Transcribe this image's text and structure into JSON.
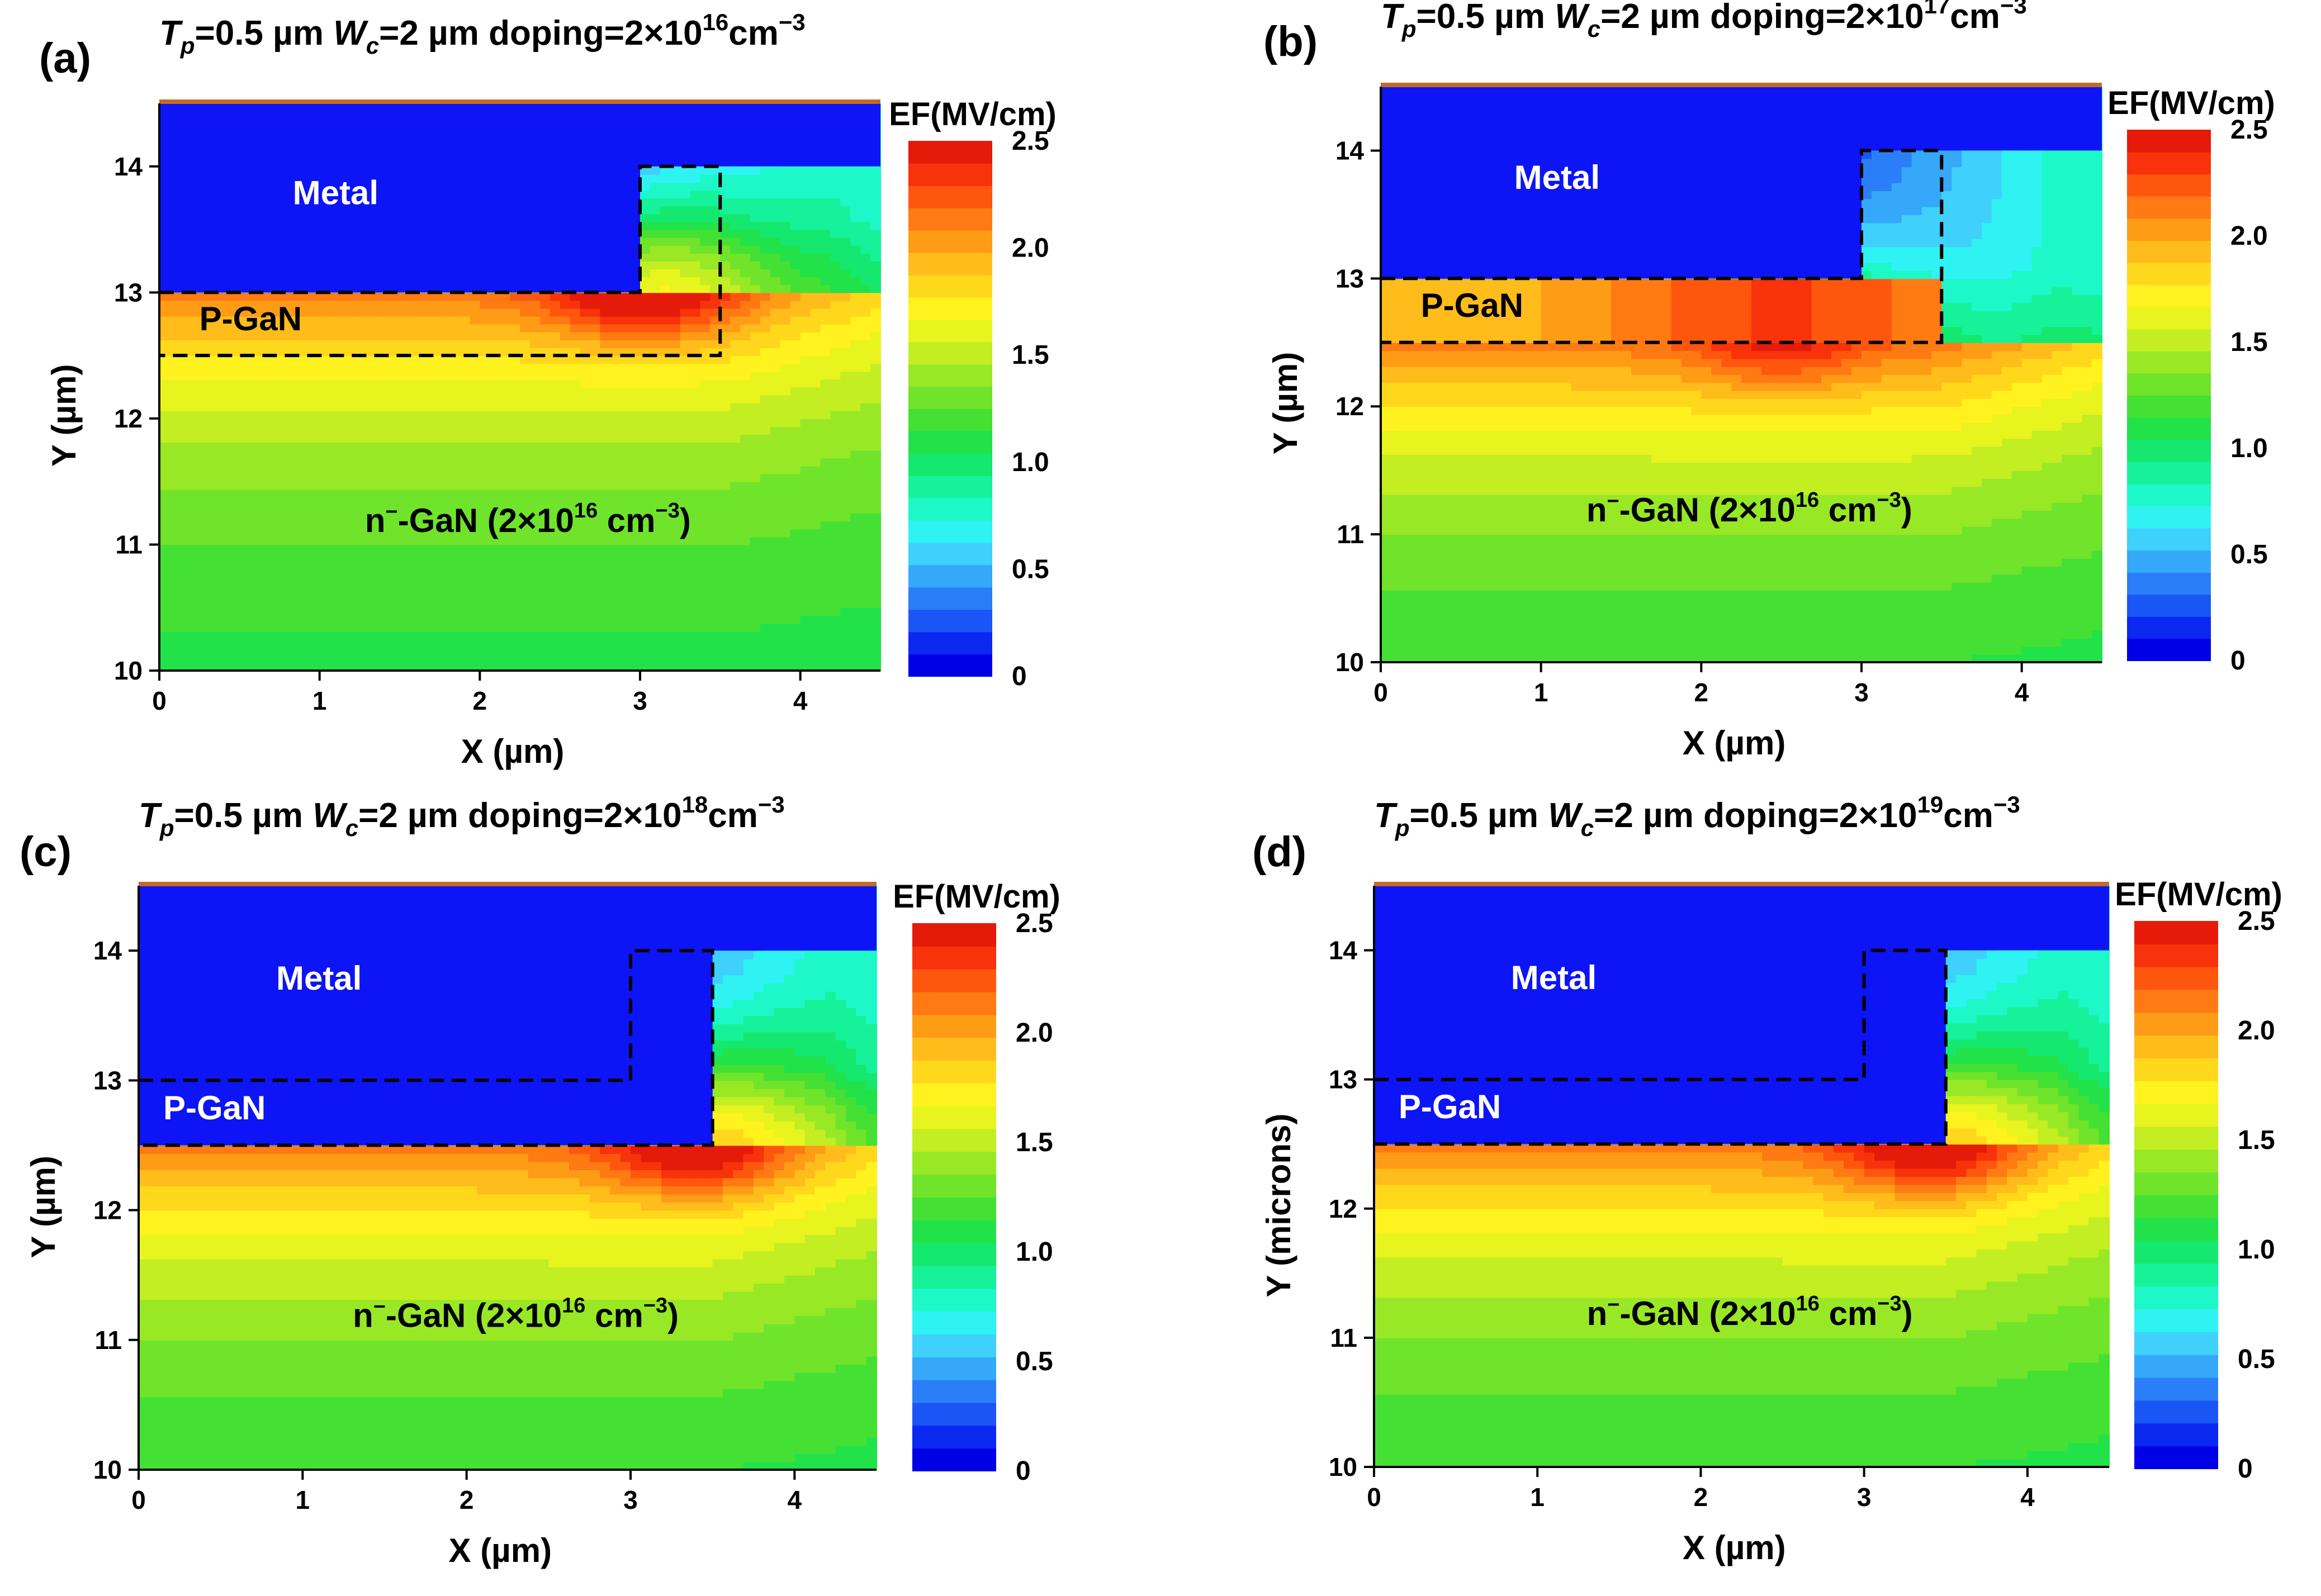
{
  "chart_data": [
    {
      "type": "heatmap",
      "panel_label": "(a)",
      "title": {
        "tp": "T",
        "tp_sub": "p",
        "tp_val": "=0.5 µm ",
        "wc": "W",
        "wc_sub": "c",
        "wc_val": "=2 µm doping=2×10",
        "exp": "16",
        "unit": "cm",
        "unit_exp": "−3"
      },
      "xlabel": "X (µm)",
      "ylabel": "Y (µm)",
      "xlim": [
        0,
        4.5
      ],
      "ylim": [
        10,
        14.5
      ],
      "x_ticks": [
        0,
        1,
        2,
        3,
        4
      ],
      "y_ticks": [
        10,
        11,
        12,
        13,
        14
      ],
      "colorbar": {
        "title": "EF(MV/cm)",
        "range": [
          0,
          2.5
        ],
        "ticks": [
          0,
          0.5,
          1.0,
          1.5,
          2.0,
          2.5
        ]
      },
      "metal": {
        "label": "Metal",
        "y_bottom": 13,
        "step_x": 3,
        "y_top": 14.5,
        "step_y": 14
      },
      "pgan": {
        "label": "P-GaN",
        "y_top": 13,
        "y_bottom": 12.5,
        "x_right": 3.5,
        "thickness_um": 0.5,
        "doping_cm3": 2e+16,
        "filled_by_metal": false
      },
      "ngan": {
        "label_prefix": "n",
        "label_mid": "-GaN (2×10",
        "label_exp": "16",
        "label_unit": " cm",
        "label_unit_exp": "−3",
        "label_end": ")"
      },
      "field": {
        "peak_x": 3.0,
        "peak_y": 12.95,
        "peak_value": 2.5,
        "surface_y": 13.0
      }
    },
    {
      "type": "heatmap",
      "panel_label": "(b)",
      "title": {
        "tp": "T",
        "tp_sub": "p",
        "tp_val": "=0.5 µm ",
        "wc": "W",
        "wc_sub": "c",
        "wc_val": "=2 µm doping=2×10",
        "exp": "17",
        "unit": "cm",
        "unit_exp": "−3"
      },
      "xlabel": "X (µm)",
      "ylabel": "Y (µm)",
      "xlim": [
        0,
        4.5
      ],
      "ylim": [
        10,
        14.5
      ],
      "x_ticks": [
        0,
        1,
        2,
        3,
        4
      ],
      "y_ticks": [
        10,
        11,
        12,
        13,
        14
      ],
      "colorbar": {
        "title": "EF(MV/cm)",
        "range": [
          0,
          2.5
        ],
        "ticks": [
          0,
          0.5,
          1.0,
          1.5,
          2.0,
          2.5
        ]
      },
      "metal": {
        "label": "Metal",
        "y_bottom": 13,
        "step_x": 3,
        "y_top": 14.5,
        "step_y": 14
      },
      "pgan": {
        "label": "P-GaN",
        "y_top": 13,
        "y_bottom": 12.5,
        "x_right": 3.5,
        "thickness_um": 0.5,
        "doping_cm3": 2e+17,
        "filled_by_metal": false
      },
      "ngan": {
        "label_prefix": "n",
        "label_mid": "-GaN (2×10",
        "label_exp": "16",
        "label_unit": " cm",
        "label_unit_exp": "−3",
        "label_end": ")"
      },
      "field": {
        "peak_x": 2.5,
        "peak_y": 12.45,
        "peak_value": 2.3,
        "surface_y": 12.5
      }
    },
    {
      "type": "heatmap",
      "panel_label": "(c)",
      "title": {
        "tp": "T",
        "tp_sub": "p",
        "tp_val": "=0.5 µm ",
        "wc": "W",
        "wc_sub": "c",
        "wc_val": "=2 µm doping=2×10",
        "exp": "18",
        "unit": "cm",
        "unit_exp": "−3"
      },
      "xlabel": "X (µm)",
      "ylabel": "Y (µm)",
      "xlim": [
        0,
        4.5
      ],
      "ylim": [
        10,
        14.5
      ],
      "x_ticks": [
        0,
        1,
        2,
        3,
        4
      ],
      "y_ticks": [
        10,
        11,
        12,
        13,
        14
      ],
      "colorbar": {
        "title": "EF(MV/cm)",
        "range": [
          0,
          2.5
        ],
        "ticks": [
          0,
          0.5,
          1.0,
          1.5,
          2.0,
          2.5
        ]
      },
      "metal": {
        "label": "Metal",
        "y_bottom": 13,
        "step_x": 3,
        "y_top": 14.5,
        "step_y": 14
      },
      "pgan": {
        "label": "P-GaN",
        "y_top": 13,
        "y_bottom": 12.5,
        "x_right": 3.5,
        "thickness_um": 0.5,
        "doping_cm3": 2e+18,
        "filled_by_metal": true
      },
      "ngan": {
        "label_prefix": "n",
        "label_mid": "-GaN (2×10",
        "label_exp": "16",
        "label_unit": " cm",
        "label_unit_exp": "−3",
        "label_end": ")"
      },
      "field": {
        "peak_x": 3.4,
        "peak_y": 12.45,
        "peak_value": 2.5,
        "surface_y": 12.5
      }
    },
    {
      "type": "heatmap",
      "panel_label": "(d)",
      "title": {
        "tp": "T",
        "tp_sub": "p",
        "tp_val": "=0.5 µm ",
        "wc": "W",
        "wc_sub": "c",
        "wc_val": "=2 µm doping=2×10",
        "exp": "19",
        "unit": "cm",
        "unit_exp": "−3"
      },
      "xlabel": "X (µm)",
      "ylabel": "Y (microns)",
      "xlim": [
        0,
        4.5
      ],
      "ylim": [
        10,
        14.5
      ],
      "x_ticks": [
        0,
        1,
        2,
        3,
        4
      ],
      "y_ticks": [
        10,
        11,
        12,
        13,
        14
      ],
      "colorbar": {
        "title": "EF(MV/cm)",
        "range": [
          0,
          2.5
        ],
        "ticks": [
          0,
          0.5,
          1.0,
          1.5,
          2.0,
          2.5
        ]
      },
      "metal": {
        "label": "Metal",
        "y_bottom": 13,
        "step_x": 3,
        "y_top": 14.5,
        "step_y": 14
      },
      "pgan": {
        "label": "P-GaN",
        "y_top": 13,
        "y_bottom": 12.5,
        "x_right": 3.5,
        "thickness_um": 0.5,
        "doping_cm3": 2e+19,
        "filled_by_metal": true
      },
      "ngan": {
        "label_prefix": "n",
        "label_mid": "-GaN (2×10",
        "label_exp": "16",
        "label_unit": " cm",
        "label_unit_exp": "−3",
        "label_end": ")"
      },
      "field": {
        "peak_x": 3.4,
        "peak_y": 12.45,
        "peak_value": 2.5,
        "surface_y": 12.5
      }
    }
  ],
  "colormap": [
    "#0000e6",
    "#0a28f0",
    "#1a55f5",
    "#2a7ff8",
    "#35a8fa",
    "#3fd0fb",
    "#2ef3f2",
    "#1ef7c8",
    "#16f29a",
    "#14e86e",
    "#22e24a",
    "#45e034",
    "#6fe42a",
    "#98e826",
    "#c2ee22",
    "#e8f41e",
    "#fff21e",
    "#ffd81c",
    "#ffbc1a",
    "#ff9c16",
    "#ff7a12",
    "#ff560e",
    "#f8320a",
    "#e61a08"
  ],
  "colors": {
    "metal": "#0d14f5",
    "top_contact": "#c46a28",
    "dashed": "#000000"
  }
}
